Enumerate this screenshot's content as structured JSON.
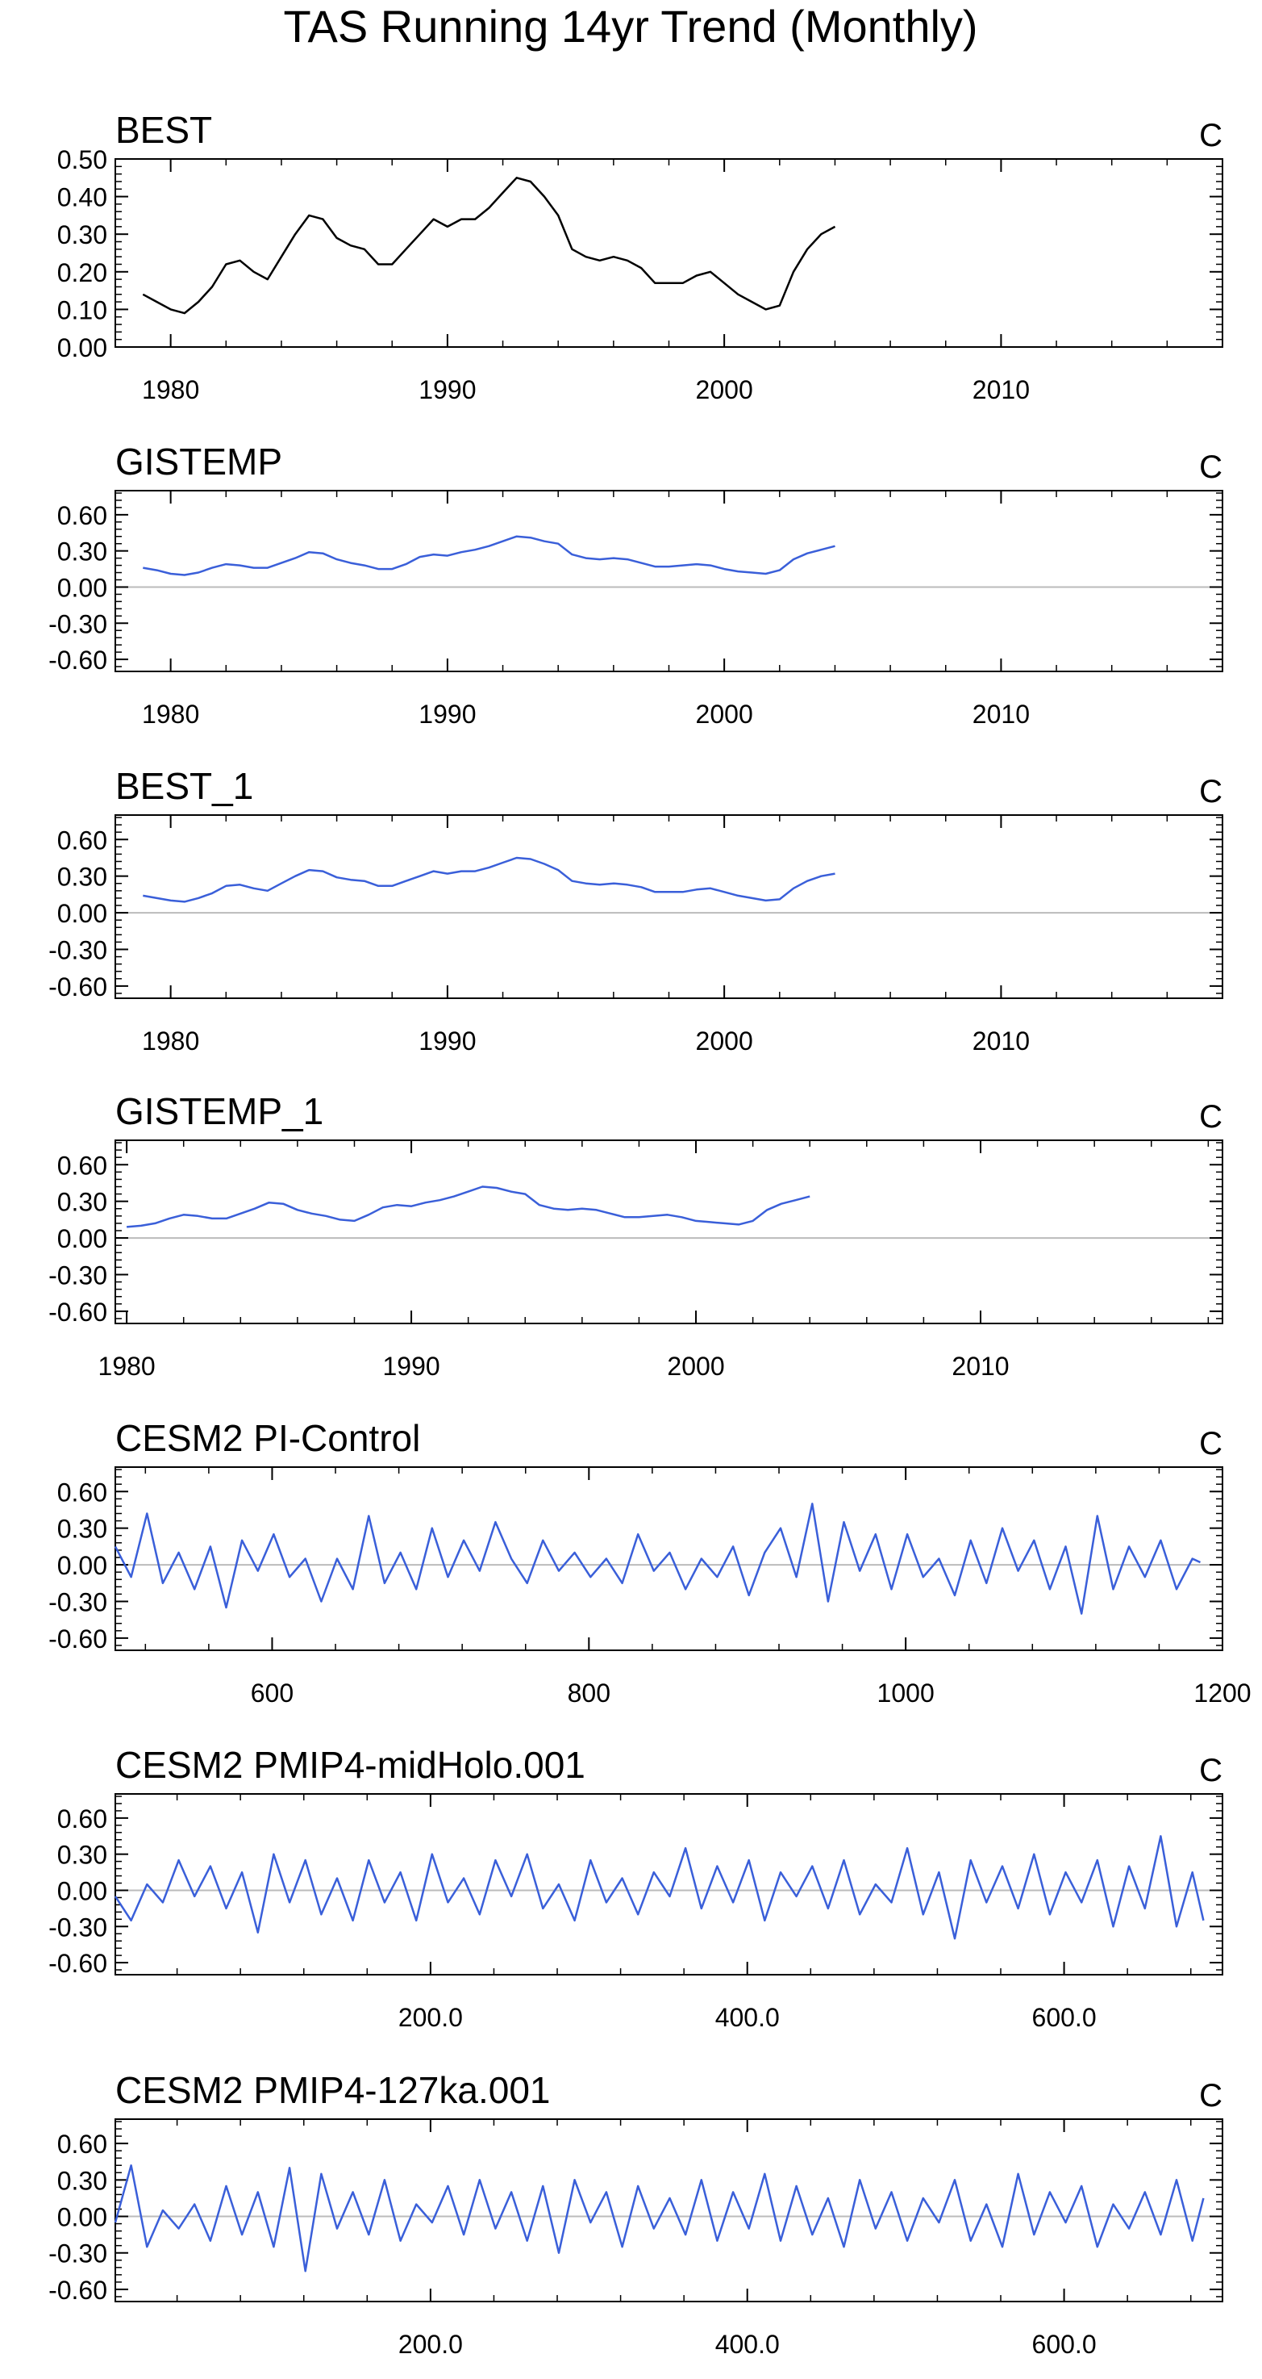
{
  "title": "TAS Running 14yr Trend (Monthly)",
  "colors": {
    "black_series": "#000000",
    "blue_series": "#3a5fd9",
    "zero_line": "#bbbbbb",
    "frame": "#000000"
  },
  "chart_data": [
    {
      "type": "line",
      "title": "BEST",
      "unit": "C",
      "color": "black",
      "xlim": [
        1978,
        2018
      ],
      "ylim": [
        0,
        0.5
      ],
      "xticks": [
        1980,
        1990,
        2000,
        2010
      ],
      "xtick_labels": [
        "1980",
        "1990",
        "2000",
        "2010"
      ],
      "yticks": [
        0,
        0.1,
        0.2,
        0.3,
        0.4,
        0.5
      ],
      "ytick_labels": [
        "0.00",
        "0.10",
        "0.20",
        "0.30",
        "0.40",
        "0.50"
      ],
      "zero_line": false,
      "x": [
        1979.0,
        1979.5,
        1980.0,
        1980.5,
        1981.0,
        1981.5,
        1982.0,
        1982.5,
        1983.0,
        1983.5,
        1984.0,
        1984.5,
        1985.0,
        1985.5,
        1986.0,
        1986.5,
        1987.0,
        1987.5,
        1988.0,
        1988.5,
        1989.0,
        1989.5,
        1990.0,
        1990.5,
        1991.0,
        1991.5,
        1992.0,
        1992.5,
        1993.0,
        1993.5,
        1994.0,
        1994.5,
        1995.0,
        1995.5,
        1996.0,
        1996.5,
        1997.0,
        1997.5,
        1998.0,
        1998.5,
        1999.0,
        1999.5,
        2000.0,
        2000.5,
        2001.0,
        2001.5,
        2002.0,
        2002.5,
        2003.0,
        2003.5,
        2004.0
      ],
      "y": [
        0.14,
        0.12,
        0.1,
        0.09,
        0.12,
        0.16,
        0.22,
        0.23,
        0.2,
        0.18,
        0.24,
        0.3,
        0.35,
        0.34,
        0.29,
        0.27,
        0.26,
        0.22,
        0.22,
        0.26,
        0.3,
        0.34,
        0.32,
        0.34,
        0.34,
        0.37,
        0.41,
        0.45,
        0.44,
        0.4,
        0.35,
        0.26,
        0.24,
        0.23,
        0.24,
        0.23,
        0.21,
        0.17,
        0.17,
        0.17,
        0.19,
        0.2,
        0.17,
        0.14,
        0.12,
        0.1,
        0.11,
        0.2,
        0.26,
        0.3,
        0.32
      ]
    },
    {
      "type": "line",
      "title": "GISTEMP",
      "unit": "C",
      "color": "blue",
      "xlim": [
        1978,
        2018
      ],
      "ylim": [
        -0.7,
        0.8
      ],
      "xticks": [
        1980,
        1990,
        2000,
        2010
      ],
      "xtick_labels": [
        "1980",
        "1990",
        "2000",
        "2010"
      ],
      "yticks": [
        -0.6,
        -0.3,
        0,
        0.3,
        0.6
      ],
      "ytick_labels": [
        "-0.60",
        "-0.30",
        "0.00",
        "0.30",
        "0.60"
      ],
      "zero_line": true,
      "x": [
        1979.0,
        1979.5,
        1980.0,
        1980.5,
        1981.0,
        1981.5,
        1982.0,
        1982.5,
        1983.0,
        1983.5,
        1984.0,
        1984.5,
        1985.0,
        1985.5,
        1986.0,
        1986.5,
        1987.0,
        1987.5,
        1988.0,
        1988.5,
        1989.0,
        1989.5,
        1990.0,
        1990.5,
        1991.0,
        1991.5,
        1992.0,
        1992.5,
        1993.0,
        1993.5,
        1994.0,
        1994.5,
        1995.0,
        1995.5,
        1996.0,
        1996.5,
        1997.0,
        1997.5,
        1998.0,
        1998.5,
        1999.0,
        1999.5,
        2000.0,
        2000.5,
        2001.0,
        2001.5,
        2002.0,
        2002.5,
        2003.0,
        2003.5,
        2004.0
      ],
      "y": [
        0.16,
        0.14,
        0.11,
        0.1,
        0.12,
        0.16,
        0.19,
        0.18,
        0.16,
        0.16,
        0.2,
        0.24,
        0.29,
        0.28,
        0.23,
        0.2,
        0.18,
        0.15,
        0.15,
        0.19,
        0.25,
        0.27,
        0.26,
        0.29,
        0.31,
        0.34,
        0.38,
        0.42,
        0.41,
        0.38,
        0.36,
        0.27,
        0.24,
        0.23,
        0.24,
        0.23,
        0.2,
        0.17,
        0.17,
        0.18,
        0.19,
        0.18,
        0.15,
        0.13,
        0.12,
        0.11,
        0.14,
        0.23,
        0.28,
        0.31,
        0.34
      ]
    },
    {
      "type": "line",
      "title": "BEST_1",
      "unit": "C",
      "color": "blue",
      "xlim": [
        1978,
        2018
      ],
      "ylim": [
        -0.7,
        0.8
      ],
      "xticks": [
        1980,
        1990,
        2000,
        2010
      ],
      "xtick_labels": [
        "1980",
        "1990",
        "2000",
        "2010"
      ],
      "yticks": [
        -0.6,
        -0.3,
        0,
        0.3,
        0.6
      ],
      "ytick_labels": [
        "-0.60",
        "-0.30",
        "0.00",
        "0.30",
        "0.60"
      ],
      "zero_line": true,
      "x": [
        1979.0,
        1979.5,
        1980.0,
        1980.5,
        1981.0,
        1981.5,
        1982.0,
        1982.5,
        1983.0,
        1983.5,
        1984.0,
        1984.5,
        1985.0,
        1985.5,
        1986.0,
        1986.5,
        1987.0,
        1987.5,
        1988.0,
        1988.5,
        1989.0,
        1989.5,
        1990.0,
        1990.5,
        1991.0,
        1991.5,
        1992.0,
        1992.5,
        1993.0,
        1993.5,
        1994.0,
        1994.5,
        1995.0,
        1995.5,
        1996.0,
        1996.5,
        1997.0,
        1997.5,
        1998.0,
        1998.5,
        1999.0,
        1999.5,
        2000.0,
        2000.5,
        2001.0,
        2001.5,
        2002.0,
        2002.5,
        2003.0,
        2003.5,
        2004.0
      ],
      "y": [
        0.14,
        0.12,
        0.1,
        0.09,
        0.12,
        0.16,
        0.22,
        0.23,
        0.2,
        0.18,
        0.24,
        0.3,
        0.35,
        0.34,
        0.29,
        0.27,
        0.26,
        0.22,
        0.22,
        0.26,
        0.3,
        0.34,
        0.32,
        0.34,
        0.34,
        0.37,
        0.41,
        0.45,
        0.44,
        0.4,
        0.35,
        0.26,
        0.24,
        0.23,
        0.24,
        0.23,
        0.21,
        0.17,
        0.17,
        0.17,
        0.19,
        0.2,
        0.17,
        0.14,
        0.12,
        0.1,
        0.11,
        0.2,
        0.26,
        0.3,
        0.32
      ]
    },
    {
      "type": "line",
      "title": "GISTEMP_1",
      "unit": "C",
      "color": "blue",
      "xlim": [
        1979.6,
        2018.5
      ],
      "ylim": [
        -0.7,
        0.8
      ],
      "xticks": [
        1980,
        1990,
        2000,
        2010
      ],
      "xtick_labels": [
        "1980",
        "1990",
        "2000",
        "2010"
      ],
      "yticks": [
        -0.6,
        -0.3,
        0,
        0.3,
        0.6
      ],
      "ytick_labels": [
        "-0.60",
        "-0.30",
        "0.00",
        "0.30",
        "0.60"
      ],
      "zero_line": true,
      "x": [
        1980.0,
        1980.5,
        1981.0,
        1981.5,
        1982.0,
        1982.5,
        1983.0,
        1983.5,
        1984.0,
        1984.5,
        1985.0,
        1985.5,
        1986.0,
        1986.5,
        1987.0,
        1987.5,
        1988.0,
        1988.5,
        1989.0,
        1989.5,
        1990.0,
        1990.5,
        1991.0,
        1991.5,
        1992.0,
        1992.5,
        1993.0,
        1993.5,
        1994.0,
        1994.5,
        1995.0,
        1995.5,
        1996.0,
        1996.5,
        1997.0,
        1997.5,
        1998.0,
        1998.5,
        1999.0,
        1999.5,
        2000.0,
        2000.5,
        2001.0,
        2001.5,
        2002.0,
        2002.5,
        2003.0,
        2003.5,
        2004.0
      ],
      "y": [
        0.09,
        0.1,
        0.12,
        0.16,
        0.19,
        0.18,
        0.16,
        0.16,
        0.2,
        0.24,
        0.29,
        0.28,
        0.23,
        0.2,
        0.18,
        0.15,
        0.14,
        0.19,
        0.25,
        0.27,
        0.26,
        0.29,
        0.31,
        0.34,
        0.38,
        0.42,
        0.41,
        0.38,
        0.36,
        0.27,
        0.24,
        0.23,
        0.24,
        0.23,
        0.2,
        0.17,
        0.17,
        0.18,
        0.19,
        0.17,
        0.14,
        0.13,
        0.12,
        0.11,
        0.14,
        0.23,
        0.28,
        0.31,
        0.34
      ]
    },
    {
      "type": "line",
      "title": "CESM2 PI-Control",
      "unit": "C",
      "color": "blue",
      "xlim": [
        501,
        1200
      ],
      "ylim": [
        -0.7,
        0.8
      ],
      "xticks": [
        600,
        800,
        1000,
        1200
      ],
      "xtick_labels": [
        "600",
        "800",
        "1000",
        "1200"
      ],
      "yticks": [
        -0.6,
        -0.3,
        0,
        0.3,
        0.6
      ],
      "ytick_labels": [
        "-0.60",
        "-0.30",
        "0.00",
        "0.30",
        "0.60"
      ],
      "zero_line": true,
      "x": [
        501,
        511,
        521,
        531,
        541,
        551,
        561,
        571,
        581,
        591,
        601,
        611,
        621,
        631,
        641,
        651,
        661,
        671,
        681,
        691,
        701,
        711,
        721,
        731,
        741,
        751,
        761,
        771,
        781,
        791,
        801,
        811,
        821,
        831,
        841,
        851,
        861,
        871,
        881,
        891,
        901,
        911,
        921,
        931,
        941,
        951,
        961,
        971,
        981,
        991,
        1001,
        1011,
        1021,
        1031,
        1041,
        1051,
        1061,
        1071,
        1081,
        1091,
        1101,
        1111,
        1121,
        1131,
        1141,
        1151,
        1161,
        1171,
        1181,
        1186
      ],
      "y": [
        0.15,
        -0.1,
        0.42,
        -0.15,
        0.1,
        -0.2,
        0.15,
        -0.35,
        0.2,
        -0.05,
        0.25,
        -0.1,
        0.05,
        -0.3,
        0.05,
        -0.2,
        0.4,
        -0.15,
        0.1,
        -0.2,
        0.3,
        -0.1,
        0.2,
        -0.05,
        0.35,
        0.05,
        -0.15,
        0.2,
        -0.05,
        0.1,
        -0.1,
        0.05,
        -0.15,
        0.25,
        -0.05,
        0.1,
        -0.2,
        0.05,
        -0.1,
        0.15,
        -0.25,
        0.1,
        0.3,
        -0.1,
        0.5,
        -0.3,
        0.35,
        -0.05,
        0.25,
        -0.2,
        0.25,
        -0.1,
        0.05,
        -0.25,
        0.2,
        -0.15,
        0.3,
        -0.05,
        0.2,
        -0.2,
        0.15,
        -0.4,
        0.4,
        -0.2,
        0.15,
        -0.1,
        0.2,
        -0.2,
        0.05,
        0.02
      ]
    },
    {
      "type": "line",
      "title": "CESM2 PMIP4-midHolo.001",
      "unit": "C",
      "color": "blue",
      "xlim": [
        1,
        700
      ],
      "ylim": [
        -0.7,
        0.8
      ],
      "xticks": [
        200,
        400,
        600
      ],
      "xtick_labels": [
        "200.0",
        "400.0",
        "600.0"
      ],
      "yticks": [
        -0.6,
        -0.3,
        0,
        0.3,
        0.6
      ],
      "ytick_labels": [
        "-0.60",
        "-0.30",
        "0.00",
        "0.30",
        "0.60"
      ],
      "zero_line": true,
      "x": [
        1,
        11,
        21,
        31,
        41,
        51,
        61,
        71,
        81,
        91,
        101,
        111,
        121,
        131,
        141,
        151,
        161,
        171,
        181,
        191,
        201,
        211,
        221,
        231,
        241,
        251,
        261,
        271,
        281,
        291,
        301,
        311,
        321,
        331,
        341,
        351,
        361,
        371,
        381,
        391,
        401,
        411,
        421,
        431,
        441,
        451,
        461,
        471,
        481,
        491,
        501,
        511,
        521,
        531,
        541,
        551,
        561,
        571,
        581,
        591,
        601,
        611,
        621,
        631,
        641,
        651,
        661,
        671,
        681,
        688
      ],
      "y": [
        -0.05,
        -0.25,
        0.05,
        -0.1,
        0.25,
        -0.05,
        0.2,
        -0.15,
        0.15,
        -0.35,
        0.3,
        -0.1,
        0.25,
        -0.2,
        0.1,
        -0.25,
        0.25,
        -0.1,
        0.15,
        -0.25,
        0.3,
        -0.1,
        0.1,
        -0.2,
        0.25,
        -0.05,
        0.3,
        -0.15,
        0.05,
        -0.25,
        0.25,
        -0.1,
        0.1,
        -0.2,
        0.15,
        -0.05,
        0.35,
        -0.15,
        0.2,
        -0.1,
        0.25,
        -0.25,
        0.15,
        -0.05,
        0.2,
        -0.15,
        0.25,
        -0.2,
        0.05,
        -0.1,
        0.35,
        -0.2,
        0.15,
        -0.4,
        0.25,
        -0.1,
        0.2,
        -0.15,
        0.3,
        -0.2,
        0.15,
        -0.1,
        0.25,
        -0.3,
        0.2,
        -0.15,
        0.45,
        -0.3,
        0.15,
        -0.25
      ]
    },
    {
      "type": "line",
      "title": "CESM2 PMIP4-127ka.001",
      "unit": "C",
      "color": "blue",
      "xlim": [
        1,
        700
      ],
      "ylim": [
        -0.7,
        0.8
      ],
      "xticks": [
        200,
        400,
        600
      ],
      "xtick_labels": [
        "200.0",
        "400.0",
        "600.0"
      ],
      "yticks": [
        -0.6,
        -0.3,
        0,
        0.3,
        0.6
      ],
      "ytick_labels": [
        "-0.60",
        "-0.30",
        "0.00",
        "0.30",
        "0.60"
      ],
      "zero_line": true,
      "x": [
        1,
        11,
        21,
        31,
        41,
        51,
        61,
        71,
        81,
        91,
        101,
        111,
        121,
        131,
        141,
        151,
        161,
        171,
        181,
        191,
        201,
        211,
        221,
        231,
        241,
        251,
        261,
        271,
        281,
        291,
        301,
        311,
        321,
        331,
        341,
        351,
        361,
        371,
        381,
        391,
        401,
        411,
        421,
        431,
        441,
        451,
        461,
        471,
        481,
        491,
        501,
        511,
        521,
        531,
        541,
        551,
        561,
        571,
        581,
        591,
        601,
        611,
        621,
        631,
        641,
        651,
        661,
        671,
        681,
        688
      ],
      "y": [
        -0.05,
        0.42,
        -0.25,
        0.05,
        -0.1,
        0.1,
        -0.2,
        0.25,
        -0.15,
        0.2,
        -0.25,
        0.4,
        -0.45,
        0.35,
        -0.1,
        0.2,
        -0.15,
        0.3,
        -0.2,
        0.1,
        -0.05,
        0.25,
        -0.15,
        0.3,
        -0.1,
        0.2,
        -0.2,
        0.25,
        -0.3,
        0.3,
        -0.05,
        0.2,
        -0.25,
        0.25,
        -0.1,
        0.15,
        -0.15,
        0.3,
        -0.2,
        0.2,
        -0.1,
        0.35,
        -0.2,
        0.25,
        -0.15,
        0.15,
        -0.25,
        0.3,
        -0.1,
        0.2,
        -0.2,
        0.15,
        -0.05,
        0.3,
        -0.2,
        0.1,
        -0.25,
        0.35,
        -0.15,
        0.2,
        -0.05,
        0.25,
        -0.25,
        0.1,
        -0.1,
        0.2,
        -0.15,
        0.3,
        -0.2,
        0.15
      ]
    }
  ]
}
